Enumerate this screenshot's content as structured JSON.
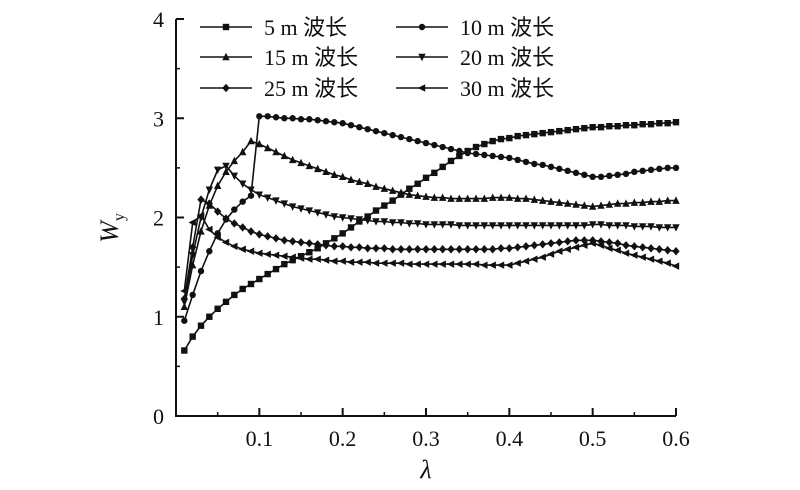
{
  "chart_data": {
    "type": "line",
    "xlabel": "λ",
    "ylabel": "W",
    "ylabel_sub": "y",
    "xlim": [
      0,
      0.6
    ],
    "ylim": [
      0,
      4
    ],
    "xticks": [
      "0.1",
      "0.2",
      "0.3",
      "0.4",
      "0.5",
      "0.6"
    ],
    "yticks": [
      "0",
      "1",
      "2",
      "3",
      "4"
    ],
    "grid": false,
    "legend": "top",
    "series": [
      {
        "name": "5 m 波长",
        "marker": "square",
        "x": [
          0.01,
          0.02,
          0.03,
          0.04,
          0.05,
          0.06,
          0.07,
          0.08,
          0.09,
          0.1,
          0.11,
          0.12,
          0.13,
          0.14,
          0.15,
          0.16,
          0.17,
          0.18,
          0.19,
          0.2,
          0.21,
          0.22,
          0.23,
          0.24,
          0.25,
          0.26,
          0.27,
          0.28,
          0.29,
          0.3,
          0.31,
          0.32,
          0.33,
          0.34,
          0.35,
          0.36,
          0.37,
          0.38,
          0.39,
          0.4,
          0.41,
          0.42,
          0.43,
          0.44,
          0.45,
          0.46,
          0.47,
          0.48,
          0.49,
          0.5,
          0.51,
          0.52,
          0.53,
          0.54,
          0.55,
          0.56,
          0.57,
          0.58,
          0.59,
          0.6
        ],
        "y": [
          0.66,
          0.8,
          0.91,
          1.0,
          1.08,
          1.15,
          1.22,
          1.28,
          1.33,
          1.38,
          1.43,
          1.48,
          1.53,
          1.57,
          1.61,
          1.65,
          1.69,
          1.74,
          1.79,
          1.84,
          1.9,
          1.96,
          2.01,
          2.07,
          2.12,
          2.17,
          2.23,
          2.29,
          2.34,
          2.4,
          2.45,
          2.51,
          2.57,
          2.62,
          2.67,
          2.71,
          2.74,
          2.77,
          2.79,
          2.8,
          2.82,
          2.83,
          2.84,
          2.85,
          2.86,
          2.87,
          2.88,
          2.89,
          2.9,
          2.91,
          2.91,
          2.92,
          2.92,
          2.93,
          2.93,
          2.94,
          2.94,
          2.95,
          2.95,
          2.96
        ]
      },
      {
        "name": "10 m 波长",
        "marker": "circle",
        "x": [
          0.01,
          0.02,
          0.03,
          0.04,
          0.05,
          0.06,
          0.07,
          0.08,
          0.09,
          0.1,
          0.11,
          0.12,
          0.13,
          0.14,
          0.15,
          0.16,
          0.17,
          0.18,
          0.19,
          0.2,
          0.21,
          0.22,
          0.23,
          0.24,
          0.25,
          0.26,
          0.27,
          0.28,
          0.29,
          0.3,
          0.31,
          0.32,
          0.33,
          0.34,
          0.35,
          0.36,
          0.37,
          0.38,
          0.39,
          0.4,
          0.41,
          0.42,
          0.43,
          0.44,
          0.45,
          0.46,
          0.47,
          0.48,
          0.49,
          0.5,
          0.51,
          0.52,
          0.53,
          0.54,
          0.55,
          0.56,
          0.57,
          0.58,
          0.59,
          0.6
        ],
        "y": [
          0.96,
          1.22,
          1.46,
          1.66,
          1.84,
          1.98,
          2.08,
          2.16,
          2.22,
          3.02,
          3.02,
          3.01,
          3.0,
          3.0,
          2.99,
          2.99,
          2.98,
          2.97,
          2.96,
          2.95,
          2.93,
          2.91,
          2.89,
          2.87,
          2.85,
          2.83,
          2.81,
          2.79,
          2.77,
          2.75,
          2.73,
          2.71,
          2.69,
          2.67,
          2.65,
          2.64,
          2.63,
          2.62,
          2.61,
          2.6,
          2.58,
          2.56,
          2.54,
          2.53,
          2.51,
          2.49,
          2.47,
          2.45,
          2.43,
          2.41,
          2.41,
          2.42,
          2.43,
          2.44,
          2.46,
          2.47,
          2.48,
          2.49,
          2.5,
          2.5
        ]
      },
      {
        "name": "15 m 波长",
        "marker": "triangle-up",
        "x": [
          0.01,
          0.02,
          0.03,
          0.04,
          0.05,
          0.06,
          0.07,
          0.08,
          0.09,
          0.1,
          0.11,
          0.12,
          0.13,
          0.14,
          0.15,
          0.16,
          0.17,
          0.18,
          0.19,
          0.2,
          0.21,
          0.22,
          0.23,
          0.24,
          0.25,
          0.26,
          0.27,
          0.28,
          0.29,
          0.3,
          0.31,
          0.32,
          0.33,
          0.34,
          0.35,
          0.36,
          0.37,
          0.38,
          0.39,
          0.4,
          0.41,
          0.42,
          0.43,
          0.44,
          0.45,
          0.46,
          0.47,
          0.48,
          0.49,
          0.5,
          0.51,
          0.52,
          0.53,
          0.54,
          0.55,
          0.56,
          0.57,
          0.58,
          0.59,
          0.6
        ],
        "y": [
          1.1,
          1.52,
          1.86,
          2.12,
          2.32,
          2.46,
          2.57,
          2.66,
          2.77,
          2.74,
          2.7,
          2.66,
          2.62,
          2.58,
          2.55,
          2.52,
          2.49,
          2.46,
          2.43,
          2.41,
          2.38,
          2.36,
          2.34,
          2.31,
          2.29,
          2.27,
          2.25,
          2.23,
          2.22,
          2.21,
          2.2,
          2.2,
          2.19,
          2.19,
          2.19,
          2.19,
          2.19,
          2.2,
          2.2,
          2.2,
          2.19,
          2.19,
          2.18,
          2.17,
          2.16,
          2.15,
          2.14,
          2.13,
          2.12,
          2.11,
          2.12,
          2.13,
          2.14,
          2.14,
          2.15,
          2.15,
          2.16,
          2.16,
          2.17,
          2.17
        ]
      },
      {
        "name": "20 m 波长",
        "marker": "triangle-down",
        "x": [
          0.01,
          0.02,
          0.03,
          0.04,
          0.05,
          0.06,
          0.07,
          0.08,
          0.09,
          0.1,
          0.11,
          0.12,
          0.13,
          0.14,
          0.15,
          0.16,
          0.17,
          0.18,
          0.19,
          0.2,
          0.21,
          0.22,
          0.23,
          0.24,
          0.25,
          0.26,
          0.27,
          0.28,
          0.29,
          0.3,
          0.31,
          0.32,
          0.33,
          0.34,
          0.35,
          0.36,
          0.37,
          0.38,
          0.39,
          0.4,
          0.41,
          0.42,
          0.43,
          0.44,
          0.45,
          0.46,
          0.47,
          0.48,
          0.49,
          0.5,
          0.51,
          0.52,
          0.53,
          0.54,
          0.55,
          0.56,
          0.57,
          0.58,
          0.59,
          0.6
        ],
        "y": [
          1.15,
          1.62,
          2.0,
          2.28,
          2.48,
          2.52,
          2.42,
          2.34,
          2.28,
          2.23,
          2.2,
          2.17,
          2.14,
          2.11,
          2.09,
          2.07,
          2.05,
          2.03,
          2.01,
          2.0,
          1.99,
          1.98,
          1.97,
          1.96,
          1.96,
          1.95,
          1.95,
          1.94,
          1.94,
          1.93,
          1.93,
          1.93,
          1.93,
          1.92,
          1.92,
          1.92,
          1.92,
          1.92,
          1.92,
          1.92,
          1.92,
          1.92,
          1.92,
          1.92,
          1.92,
          1.92,
          1.92,
          1.92,
          1.92,
          1.93,
          1.93,
          1.92,
          1.92,
          1.92,
          1.91,
          1.91,
          1.91,
          1.9,
          1.9,
          1.9
        ]
      },
      {
        "name": "25 m 波长",
        "marker": "diamond",
        "x": [
          0.01,
          0.02,
          0.03,
          0.04,
          0.05,
          0.06,
          0.07,
          0.08,
          0.09,
          0.1,
          0.11,
          0.12,
          0.13,
          0.14,
          0.15,
          0.16,
          0.17,
          0.18,
          0.19,
          0.2,
          0.21,
          0.22,
          0.23,
          0.24,
          0.25,
          0.26,
          0.27,
          0.28,
          0.29,
          0.3,
          0.31,
          0.32,
          0.33,
          0.34,
          0.35,
          0.36,
          0.37,
          0.38,
          0.39,
          0.4,
          0.41,
          0.42,
          0.43,
          0.44,
          0.45,
          0.46,
          0.47,
          0.48,
          0.49,
          0.5,
          0.51,
          0.52,
          0.53,
          0.54,
          0.55,
          0.56,
          0.57,
          0.58,
          0.59,
          0.6
        ],
        "y": [
          1.18,
          1.7,
          2.18,
          2.14,
          2.06,
          1.99,
          1.94,
          1.9,
          1.86,
          1.83,
          1.81,
          1.79,
          1.77,
          1.76,
          1.75,
          1.74,
          1.73,
          1.72,
          1.71,
          1.71,
          1.7,
          1.7,
          1.69,
          1.69,
          1.69,
          1.68,
          1.68,
          1.68,
          1.68,
          1.68,
          1.68,
          1.68,
          1.68,
          1.68,
          1.68,
          1.68,
          1.68,
          1.68,
          1.69,
          1.69,
          1.7,
          1.71,
          1.72,
          1.73,
          1.74,
          1.75,
          1.76,
          1.77,
          1.77,
          1.77,
          1.76,
          1.75,
          1.74,
          1.72,
          1.71,
          1.7,
          1.69,
          1.68,
          1.67,
          1.66
        ]
      },
      {
        "name": "30 m 波长",
        "marker": "triangle-left",
        "x": [
          0.01,
          0.02,
          0.03,
          0.04,
          0.05,
          0.06,
          0.07,
          0.08,
          0.09,
          0.1,
          0.11,
          0.12,
          0.13,
          0.14,
          0.15,
          0.16,
          0.17,
          0.18,
          0.19,
          0.2,
          0.21,
          0.22,
          0.23,
          0.24,
          0.25,
          0.26,
          0.27,
          0.28,
          0.29,
          0.3,
          0.31,
          0.32,
          0.33,
          0.34,
          0.35,
          0.36,
          0.37,
          0.38,
          0.39,
          0.4,
          0.41,
          0.42,
          0.43,
          0.44,
          0.45,
          0.46,
          0.47,
          0.48,
          0.49,
          0.5,
          0.51,
          0.52,
          0.53,
          0.54,
          0.55,
          0.56,
          0.57,
          0.58,
          0.59,
          0.6
        ],
        "y": [
          1.26,
          1.95,
          2.02,
          1.88,
          1.8,
          1.75,
          1.71,
          1.68,
          1.66,
          1.64,
          1.63,
          1.62,
          1.61,
          1.6,
          1.59,
          1.58,
          1.58,
          1.57,
          1.56,
          1.56,
          1.55,
          1.55,
          1.55,
          1.54,
          1.54,
          1.54,
          1.54,
          1.53,
          1.53,
          1.53,
          1.53,
          1.53,
          1.53,
          1.53,
          1.53,
          1.53,
          1.52,
          1.52,
          1.52,
          1.52,
          1.54,
          1.56,
          1.58,
          1.6,
          1.63,
          1.66,
          1.68,
          1.7,
          1.72,
          1.74,
          1.72,
          1.69,
          1.67,
          1.64,
          1.62,
          1.6,
          1.58,
          1.56,
          1.54,
          1.51
        ]
      }
    ]
  }
}
